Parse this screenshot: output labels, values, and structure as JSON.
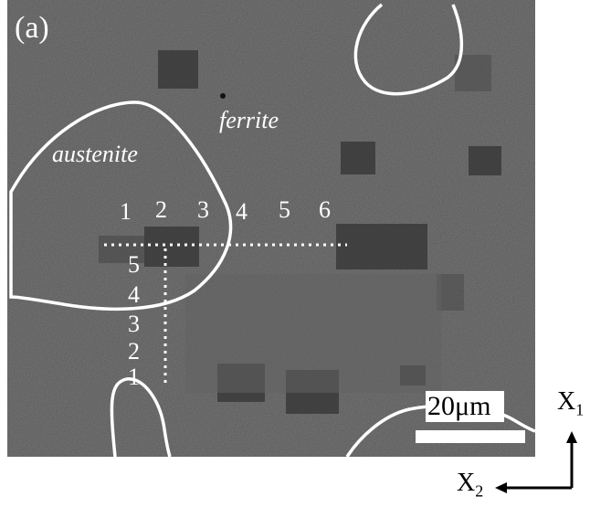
{
  "panel_label": "(a)",
  "phases": {
    "austenite": "austenite",
    "ferrite": "ferrite"
  },
  "horizontal_indices": [
    "1",
    "2",
    "3",
    "4",
    "5",
    "6"
  ],
  "vertical_indices": [
    "5",
    "4",
    "3",
    "2",
    "1"
  ],
  "scale_bar": {
    "label": "20μm"
  },
  "axes": {
    "x1": "X",
    "x1_sub": "1",
    "x2": "X",
    "x2_sub": "2"
  },
  "colors": {
    "background": "#575757",
    "boundary": "#ffffff",
    "dots": "#ffffff"
  }
}
